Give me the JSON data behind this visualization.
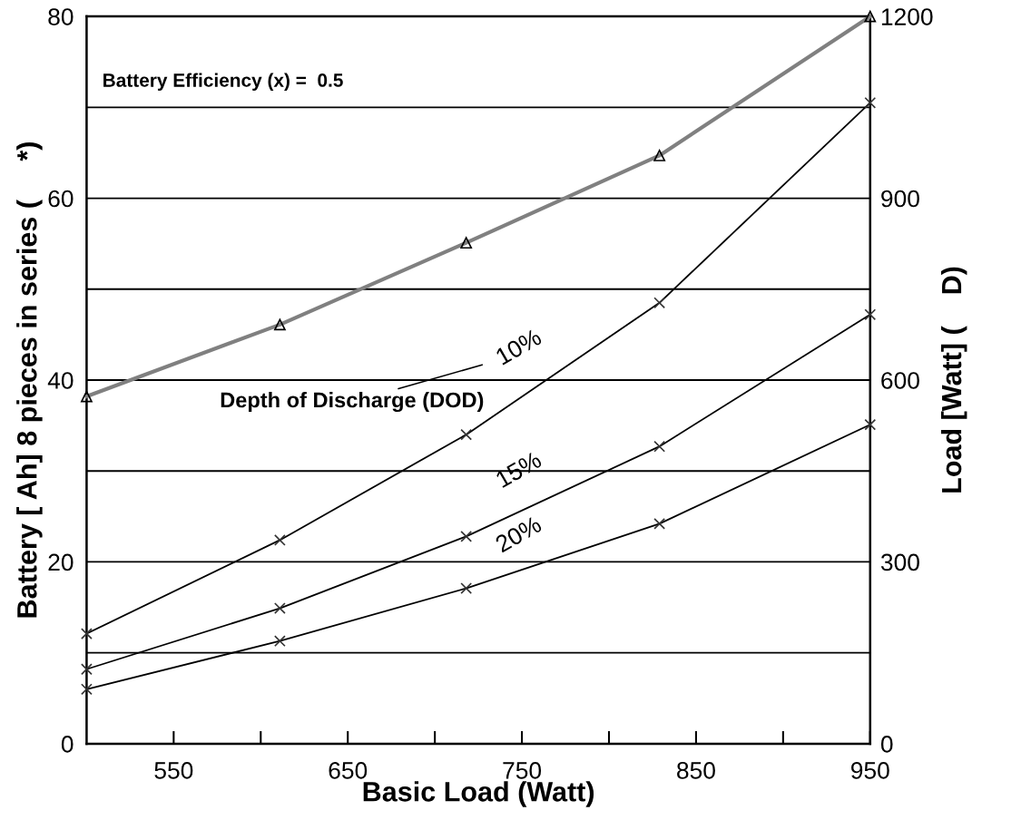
{
  "chart_data": {
    "type": "line",
    "xlabel": "Basic Load (Watt)",
    "ylabel": "Battery [ Ah] 8 pieces in series (     *)",
    "y2label": "Load [Watt] (    D)",
    "annotations": [
      "Battery Efficiency (x) =  0.5",
      "Depth of Discharge (DOD)"
    ],
    "x": [
      500,
      611,
      718,
      829,
      950
    ],
    "series": [
      {
        "color": "#808080",
        "marker": "triangle",
        "values": [
          38.2,
          46.1,
          55.1,
          64.7,
          80
        ]
      },
      {
        "name": "10%",
        "color": "#000000",
        "marker": "cross",
        "values": [
          12.1,
          22.4,
          34.0,
          48.5,
          70.5
        ]
      },
      {
        "name": "15%",
        "color": "#000000",
        "marker": "cross",
        "values": [
          8.2,
          14.9,
          22.8,
          32.7,
          47.2
        ]
      },
      {
        "name": "20%",
        "color": "#000000",
        "marker": "cross",
        "values": [
          6.0,
          11.3,
          17.1,
          24.2,
          35.1
        ]
      }
    ],
    "xlim": [
      500,
      950
    ],
    "xticks": [
      550,
      {
        "value": 600,
        "label": null
      },
      650,
      {
        "value": 700,
        "label": null
      },
      750,
      {
        "value": 800,
        "label": null
      },
      850,
      {
        "value": 900,
        "label": null
      },
      950
    ],
    "ylim": [
      0,
      80
    ],
    "yticks": [
      0,
      {
        "value": 10,
        "label": null
      },
      20,
      {
        "value": 30,
        "label": null
      },
      40,
      {
        "value": 50,
        "label": null
      },
      60,
      {
        "value": 70,
        "label": null
      },
      80
    ],
    "y2lim": [
      0,
      1200
    ],
    "y2ticks": [
      0,
      300,
      600,
      900,
      1200
    ],
    "grid": "y",
    "legend": false
  }
}
